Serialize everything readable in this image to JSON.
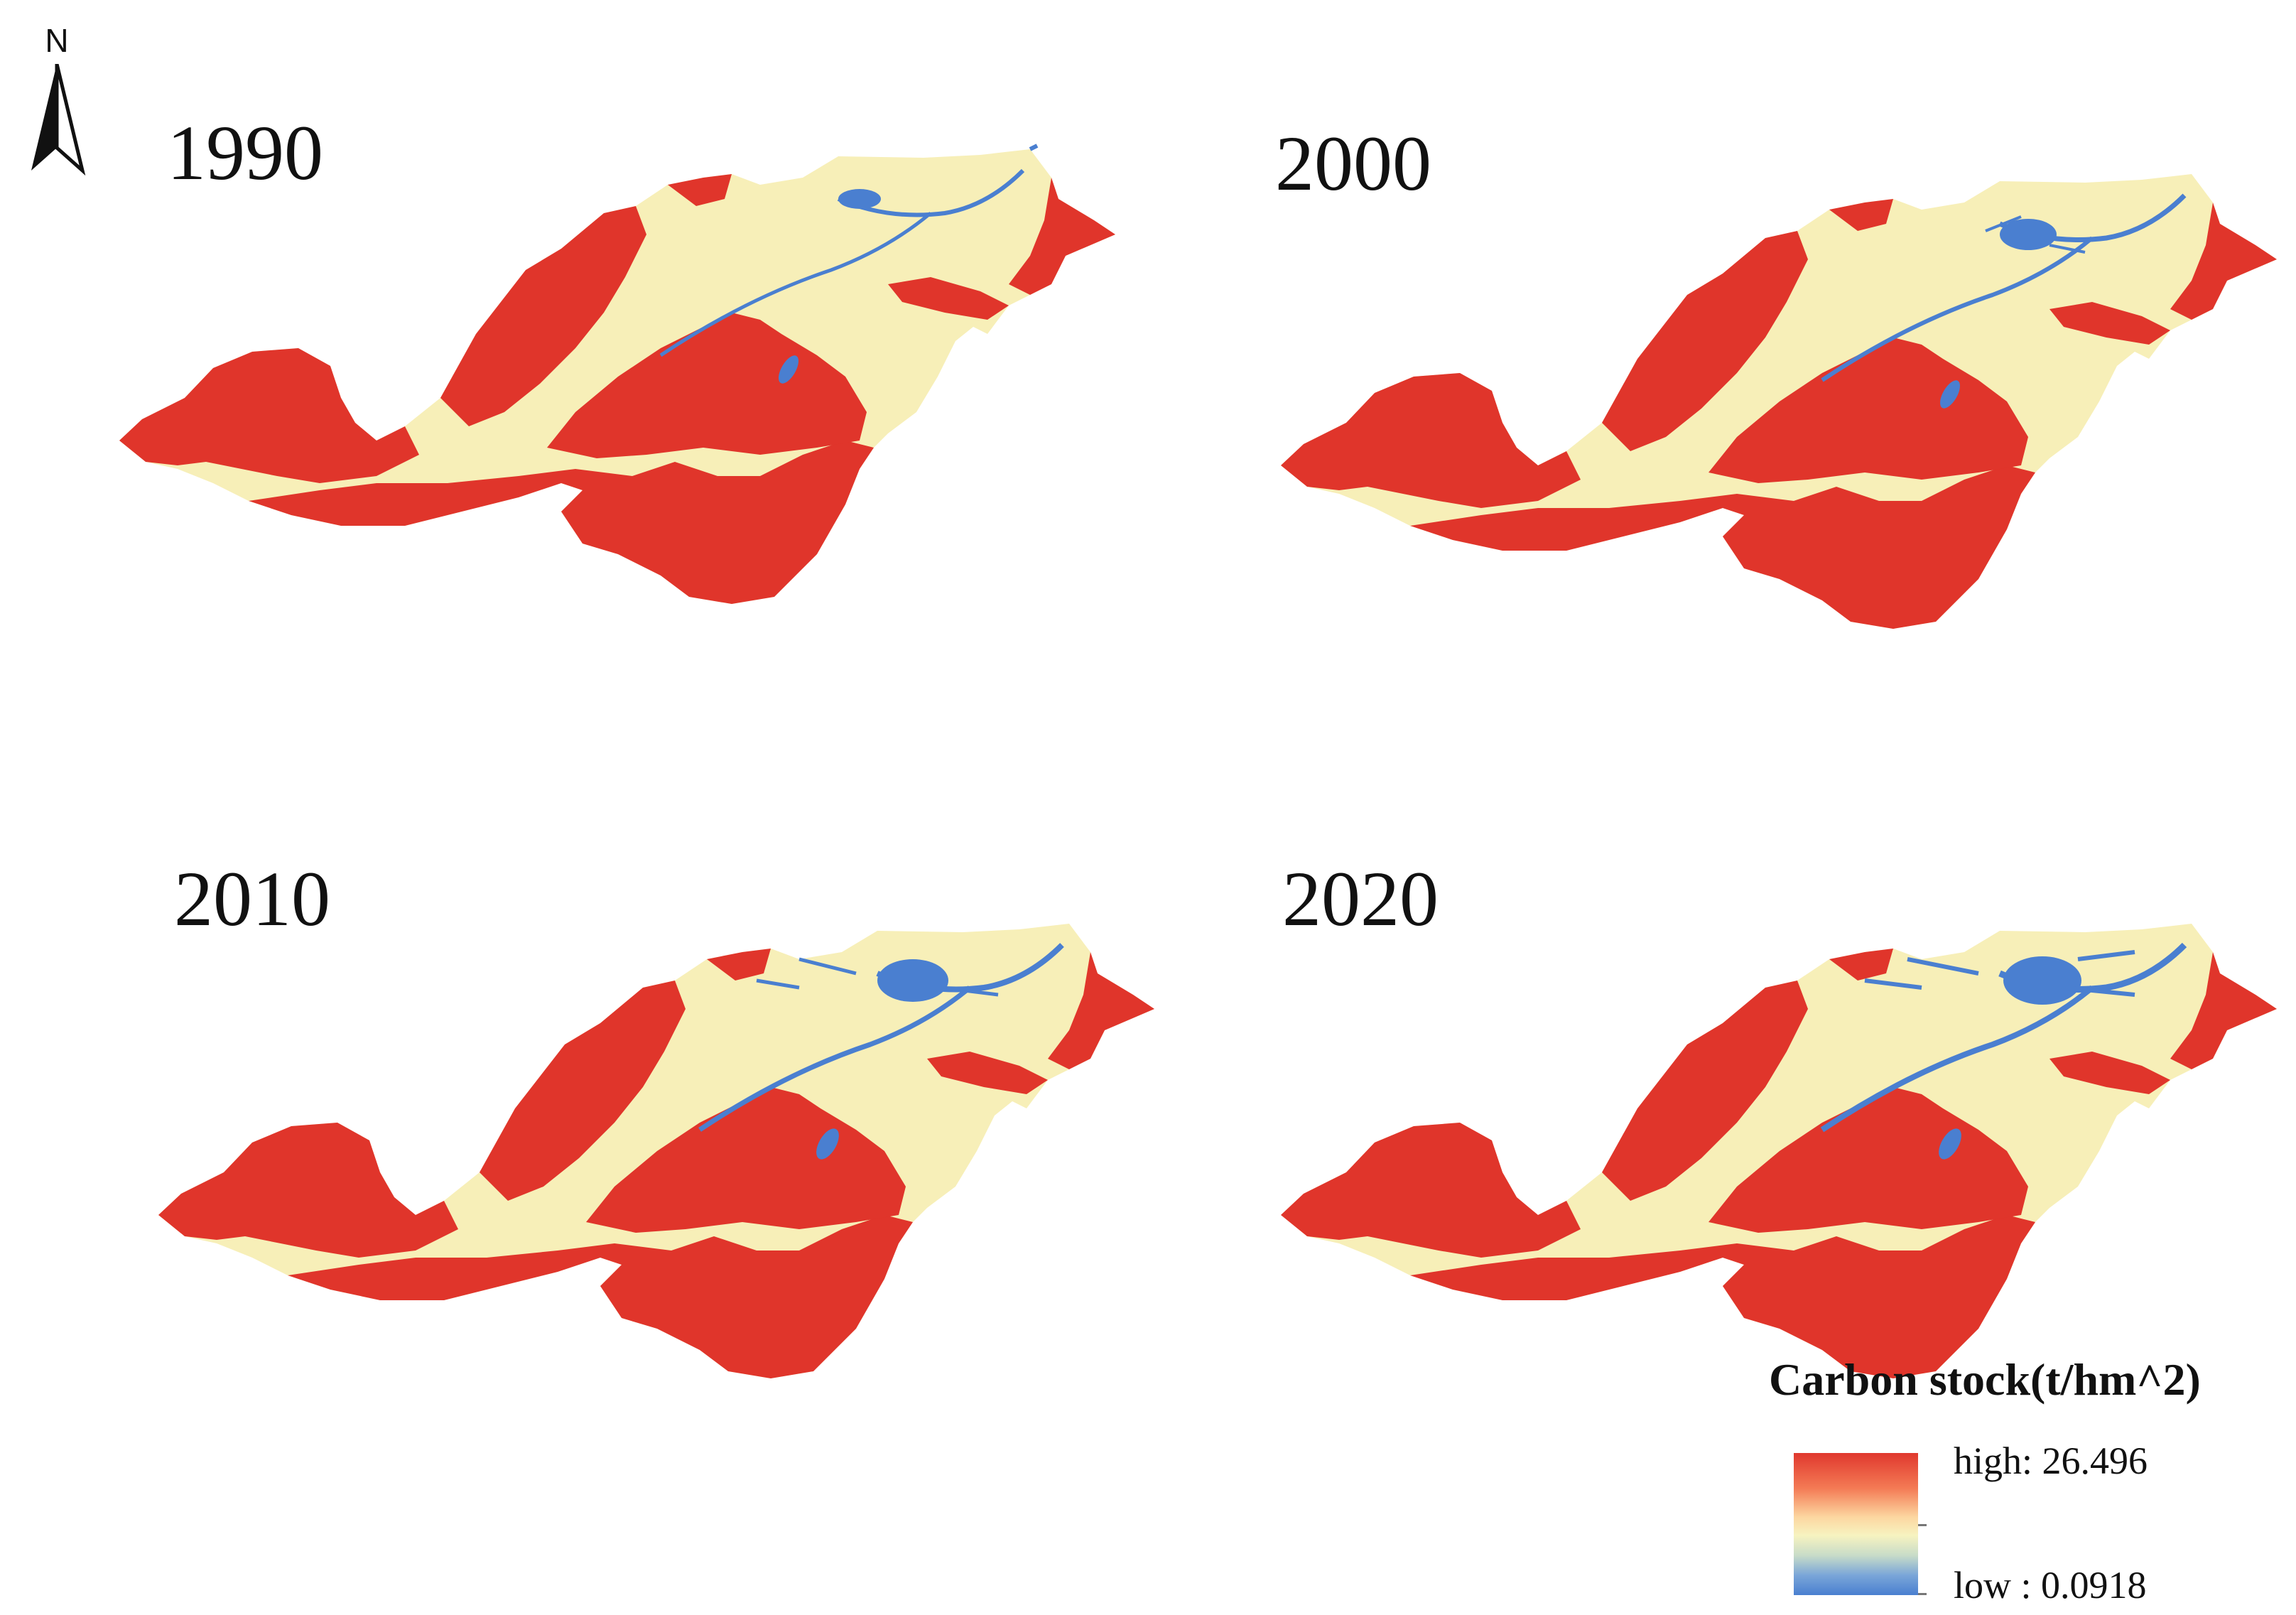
{
  "north_arrow": {
    "letter": "N",
    "icon": "north-arrow-icon"
  },
  "panels": [
    {
      "year": "1990"
    },
    {
      "year": "2000"
    },
    {
      "year": "2010"
    },
    {
      "year": "2020"
    }
  ],
  "legend": {
    "title": "Carbon stock(t/hm^2)",
    "high_label": "high: 26.496",
    "low_label": "low : 0.0918",
    "colors": {
      "high": "#e0382e",
      "mid": "#f7f3c0",
      "low": "#4a7fd0"
    }
  },
  "colors": {
    "high_stock": "#e0352b",
    "low_stock": "#f7efb8",
    "water": "#4a7fd0"
  }
}
